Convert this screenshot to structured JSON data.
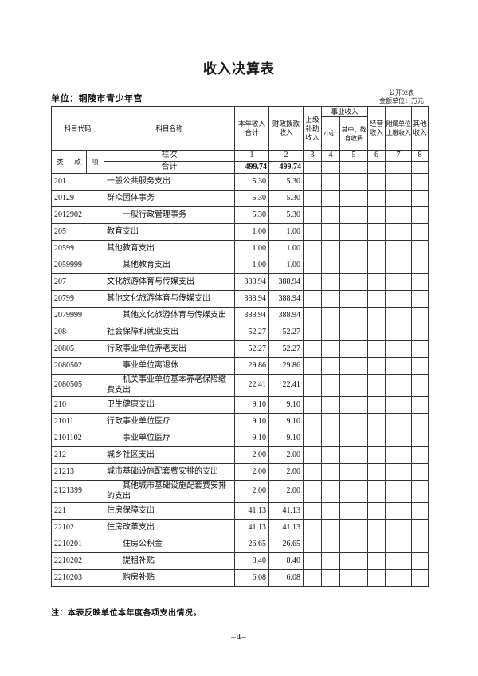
{
  "page": {
    "title": "收入决算表",
    "unit_line": "单位：铜陵市青少年宫",
    "table_code": "公开02表",
    "amount_unit": "金额单位：万元",
    "note": "注：本表反映单位本年度各项支出情况。",
    "page_number": "–4–"
  },
  "table": {
    "headers": {
      "subject_code": "科目代码",
      "code_sub": [
        "类",
        "款",
        "项"
      ],
      "subject_name": "科目名称",
      "total_income": "本年收入合计",
      "fiscal_appropriation": "财政拨款收入",
      "superior_subsidy": "上级补助收入",
      "business_income_group": "事业收入",
      "business_subtotal": "小计",
      "business_education_fee": "其中：教育收费",
      "operating_income": "经营收入",
      "affiliated_unit_income": "附属单位上缴收入",
      "other_income": "其他收入"
    },
    "lanci_label": "栏次",
    "column_numbers": [
      "1",
      "2",
      "3",
      "4",
      "5",
      "6",
      "7",
      "8"
    ],
    "grand_total": {
      "label": "合计",
      "v1": "499.74",
      "v2": "499.74"
    },
    "rows": [
      {
        "code": "201",
        "name": "一般公共服务支出",
        "indent": false,
        "v1": "5.30",
        "v2": "5.30"
      },
      {
        "code": "20129",
        "name": "群众团体事务",
        "indent": false,
        "v1": "5.30",
        "v2": "5.30"
      },
      {
        "code": "2012902",
        "name": "一般行政管理事务",
        "indent": true,
        "v1": "5.30",
        "v2": "5.30"
      },
      {
        "code": "205",
        "name": "教育支出",
        "indent": false,
        "v1": "1.00",
        "v2": "1.00"
      },
      {
        "code": "20599",
        "name": "其他教育支出",
        "indent": false,
        "v1": "1.00",
        "v2": "1.00"
      },
      {
        "code": "2059999",
        "name": "其他教育支出",
        "indent": true,
        "v1": "1.00",
        "v2": "1.00"
      },
      {
        "code": "207",
        "name": "文化旅游体育与传媒支出",
        "indent": false,
        "v1": "388.94",
        "v2": "388.94"
      },
      {
        "code": "20799",
        "name": "其他文化旅游体育与传媒支出",
        "indent": false,
        "v1": "388.94",
        "v2": "388.94"
      },
      {
        "code": "2079999",
        "name": "其他文化旅游体育与传媒支出",
        "indent": true,
        "v1": "388.94",
        "v2": "388.94"
      },
      {
        "code": "208",
        "name": "社会保障和就业支出",
        "indent": false,
        "v1": "52.27",
        "v2": "52.27"
      },
      {
        "code": "20805",
        "name": "行政事业单位养老支出",
        "indent": false,
        "v1": "52.27",
        "v2": "52.27"
      },
      {
        "code": "2080502",
        "name": "事业单位离退休",
        "indent": true,
        "v1": "29.86",
        "v2": "29.86"
      },
      {
        "code": "2080505",
        "name": "机关事业单位基本养老保险缴费支出",
        "indent": true,
        "v1": "22.41",
        "v2": "22.41"
      },
      {
        "code": "210",
        "name": "卫生健康支出",
        "indent": false,
        "v1": "9.10",
        "v2": "9.10"
      },
      {
        "code": "21011",
        "name": "行政事业单位医疗",
        "indent": false,
        "v1": "9.10",
        "v2": "9.10"
      },
      {
        "code": "2101102",
        "name": "事业单位医疗",
        "indent": true,
        "v1": "9.10",
        "v2": "9.10"
      },
      {
        "code": "212",
        "name": "城乡社区支出",
        "indent": false,
        "v1": "2.00",
        "v2": "2.00"
      },
      {
        "code": "21213",
        "name": "城市基础设施配套费安排的支出",
        "indent": false,
        "v1": "2.00",
        "v2": "2.00"
      },
      {
        "code": "2121399",
        "name": "其他城市基础设施配套费安排的支出",
        "indent": true,
        "v1": "2.00",
        "v2": "2.00"
      },
      {
        "code": "221",
        "name": "住房保障支出",
        "indent": false,
        "v1": "41.13",
        "v2": "41.13"
      },
      {
        "code": "22102",
        "name": "住房改革支出",
        "indent": false,
        "v1": "41.13",
        "v2": "41.13"
      },
      {
        "code": "2210201",
        "name": "住房公积金",
        "indent": true,
        "v1": "26.65",
        "v2": "26.65"
      },
      {
        "code": "2210202",
        "name": "提租补贴",
        "indent": true,
        "v1": "8.40",
        "v2": "8.40"
      },
      {
        "code": "2210203",
        "name": "购房补贴",
        "indent": true,
        "v1": "6.08",
        "v2": "6.08"
      }
    ]
  }
}
